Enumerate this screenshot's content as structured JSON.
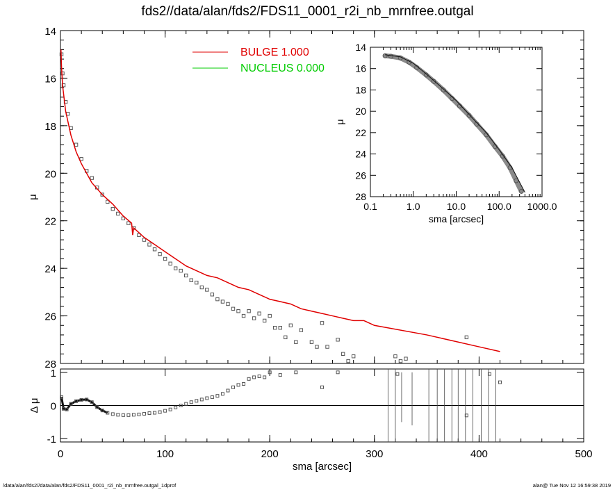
{
  "title": "fds2//data/alan/fds2/FDS11_0001_r2i_nb_mrnfree.outgal",
  "footer": {
    "left": "/data/alan/fds2//data/alan/fds2/FDS11_0001_r2i_nb_mrnfree.outgal_1dprof",
    "right": "alan@  Tue Nov 12 16:59:38 2019"
  },
  "colors": {
    "bulge": "#e00000",
    "nucleus": "#00cc00",
    "data": "#555555",
    "axis": "#000000"
  },
  "legend": [
    {
      "label": "BULGE",
      "value": "1.000",
      "color": "#e00000"
    },
    {
      "label": "NUCLEUS",
      "value": "0.000",
      "color": "#00cc00"
    }
  ],
  "chart_data": [
    {
      "type": "scatter",
      "name": "main-profile",
      "xlabel": "",
      "ylabel": "μ",
      "xlim": [
        0,
        500
      ],
      "ylim": [
        28,
        14
      ],
      "yticks": [
        14,
        16,
        18,
        20,
        22,
        24,
        26,
        28
      ],
      "xticks": [
        0,
        100,
        200,
        300,
        400,
        500
      ],
      "show_x_ticklabels": false,
      "series": [
        {
          "name": "data",
          "points": [
            [
              1,
              15.0
            ],
            [
              2,
              15.8
            ],
            [
              3,
              16.3
            ],
            [
              5,
              17.0
            ],
            [
              7,
              17.5
            ],
            [
              10,
              18.1
            ],
            [
              15,
              18.8
            ],
            [
              20,
              19.4
            ],
            [
              25,
              19.9
            ],
            [
              30,
              20.2
            ],
            [
              35,
              20.6
            ],
            [
              40,
              20.9
            ],
            [
              45,
              21.2
            ],
            [
              50,
              21.5
            ],
            [
              55,
              21.7
            ],
            [
              60,
              21.9
            ],
            [
              65,
              22.1
            ],
            [
              70,
              22.3
            ],
            [
              75,
              22.6
            ],
            [
              80,
              22.8
            ],
            [
              85,
              23.0
            ],
            [
              90,
              23.2
            ],
            [
              95,
              23.4
            ],
            [
              100,
              23.6
            ],
            [
              105,
              23.8
            ],
            [
              110,
              24.0
            ],
            [
              115,
              24.1
            ],
            [
              120,
              24.3
            ],
            [
              125,
              24.5
            ],
            [
              130,
              24.6
            ],
            [
              135,
              24.8
            ],
            [
              140,
              24.9
            ],
            [
              145,
              25.1
            ],
            [
              150,
              25.3
            ],
            [
              155,
              25.4
            ],
            [
              160,
              25.5
            ],
            [
              165,
              25.7
            ],
            [
              170,
              25.8
            ],
            [
              175,
              26.0
            ],
            [
              180,
              25.8
            ],
            [
              185,
              26.1
            ],
            [
              190,
              25.9
            ],
            [
              195,
              26.2
            ],
            [
              200,
              26.0
            ],
            [
              205,
              26.5
            ],
            [
              210,
              26.5
            ],
            [
              215,
              26.9
            ],
            [
              220,
              26.4
            ],
            [
              225,
              27.1
            ],
            [
              230,
              26.6
            ],
            [
              240,
              27.1
            ],
            [
              245,
              27.3
            ],
            [
              250,
              26.3
            ],
            [
              255,
              27.3
            ],
            [
              265,
              27.0
            ],
            [
              270,
              27.6
            ],
            [
              275,
              27.9
            ],
            [
              280,
              27.7
            ],
            [
              320,
              27.7
            ],
            [
              325,
              27.9
            ],
            [
              330,
              27.8
            ],
            [
              388,
              26.9
            ]
          ]
        },
        {
          "name": "BULGE",
          "points": [
            [
              0.5,
              14.8
            ],
            [
              1,
              15.5
            ],
            [
              2,
              16.3
            ],
            [
              5,
              17.4
            ],
            [
              10,
              18.4
            ],
            [
              15,
              19.1
            ],
            [
              20,
              19.6
            ],
            [
              25,
              20.0
            ],
            [
              30,
              20.4
            ],
            [
              40,
              20.9
            ],
            [
              50,
              21.3
            ],
            [
              60,
              21.8
            ],
            [
              68,
              22.1
            ],
            [
              69,
              22.6
            ],
            [
              70,
              22.3
            ],
            [
              80,
              22.7
            ],
            [
              90,
              23.0
            ],
            [
              100,
              23.3
            ],
            [
              110,
              23.6
            ],
            [
              120,
              23.9
            ],
            [
              130,
              24.1
            ],
            [
              140,
              24.3
            ],
            [
              150,
              24.4
            ],
            [
              160,
              24.6
            ],
            [
              170,
              24.8
            ],
            [
              180,
              24.9
            ],
            [
              190,
              25.1
            ],
            [
              200,
              25.3
            ],
            [
              210,
              25.4
            ],
            [
              220,
              25.5
            ],
            [
              230,
              25.7
            ],
            [
              240,
              25.8
            ],
            [
              250,
              25.9
            ],
            [
              260,
              26.0
            ],
            [
              270,
              26.1
            ],
            [
              280,
              26.2
            ],
            [
              290,
              26.2
            ],
            [
              300,
              26.4
            ],
            [
              350,
              26.8
            ],
            [
              400,
              27.3
            ],
            [
              420,
              27.5
            ]
          ]
        }
      ]
    },
    {
      "type": "scatter",
      "name": "inset-log-profile",
      "xlabel": "sma [arcsec]",
      "ylabel": "μ",
      "xscale": "log",
      "xlim": [
        0.1,
        1000
      ],
      "ylim": [
        28,
        14
      ],
      "xticks": [
        "0.1",
        "1.0",
        "10.0",
        "100.0",
        "1000.0"
      ],
      "yticks": [
        14,
        16,
        18,
        20,
        22,
        24,
        26,
        28
      ],
      "series": [
        {
          "name": "data",
          "points": [
            [
              0.22,
              14.8
            ],
            [
              0.3,
              14.85
            ],
            [
              0.5,
              15.0
            ],
            [
              0.8,
              15.4
            ],
            [
              1.2,
              15.9
            ],
            [
              2,
              16.6
            ],
            [
              3,
              17.2
            ],
            [
              5,
              18.0
            ],
            [
              8,
              18.8
            ],
            [
              12,
              19.5
            ],
            [
              20,
              20.4
            ],
            [
              30,
              21.2
            ],
            [
              50,
              22.2
            ],
            [
              80,
              23.3
            ],
            [
              120,
              24.2
            ],
            [
              180,
              25.3
            ],
            [
              250,
              26.5
            ],
            [
              330,
              27.5
            ]
          ]
        },
        {
          "name": "model",
          "points": [
            [
              0.22,
              14.7
            ],
            [
              0.5,
              14.9
            ],
            [
              1,
              15.5
            ],
            [
              2,
              16.5
            ],
            [
              5,
              17.9
            ],
            [
              10,
              19.0
            ],
            [
              20,
              20.3
            ],
            [
              50,
              22.0
            ],
            [
              100,
              23.6
            ],
            [
              200,
              25.3
            ],
            [
              400,
              27.6
            ]
          ]
        }
      ]
    },
    {
      "type": "scatter",
      "name": "residuals",
      "xlabel": "sma [arcsec]",
      "ylabel": "Δ μ",
      "xlim": [
        0,
        500
      ],
      "ylim": [
        -1.1,
        1.1
      ],
      "yticks": [
        -1,
        0,
        1
      ],
      "xticks": [
        0,
        100,
        200,
        300,
        400,
        500
      ],
      "series": [
        {
          "name": "residual",
          "points": [
            [
              1,
              0.25
            ],
            [
              3,
              -0.1
            ],
            [
              6,
              -0.12
            ],
            [
              10,
              0.05
            ],
            [
              15,
              0.13
            ],
            [
              20,
              0.17
            ],
            [
              25,
              0.18
            ],
            [
              30,
              0.1
            ],
            [
              35,
              -0.05
            ],
            [
              40,
              -0.15
            ],
            [
              45,
              -0.22
            ],
            [
              50,
              -0.26
            ],
            [
              55,
              -0.28
            ],
            [
              60,
              -0.29
            ],
            [
              65,
              -0.29
            ],
            [
              70,
              -0.28
            ],
            [
              75,
              -0.27
            ],
            [
              80,
              -0.25
            ],
            [
              85,
              -0.23
            ],
            [
              90,
              -0.22
            ],
            [
              95,
              -0.2
            ],
            [
              100,
              -0.16
            ],
            [
              105,
              -0.12
            ],
            [
              110,
              -0.06
            ],
            [
              115,
              0.0
            ],
            [
              120,
              0.05
            ],
            [
              125,
              0.1
            ],
            [
              130,
              0.14
            ],
            [
              135,
              0.18
            ],
            [
              140,
              0.22
            ],
            [
              145,
              0.25
            ],
            [
              150,
              0.29
            ],
            [
              155,
              0.35
            ],
            [
              160,
              0.45
            ],
            [
              165,
              0.55
            ],
            [
              170,
              0.62
            ],
            [
              175,
              0.65
            ],
            [
              180,
              0.8
            ],
            [
              185,
              0.85
            ],
            [
              190,
              0.88
            ],
            [
              195,
              0.85
            ],
            [
              200,
              1.0
            ],
            [
              210,
              0.92
            ],
            [
              225,
              1.0
            ],
            [
              250,
              0.55
            ],
            [
              265,
              1.0
            ],
            [
              322,
              0.95
            ],
            [
              388,
              -0.3
            ],
            [
              410,
              0.95
            ],
            [
              420,
              0.7
            ]
          ]
        }
      ],
      "error_bars": [
        [
          313,
          -1.1,
          1.1
        ],
        [
          320,
          -1.1,
          1.1
        ],
        [
          326,
          -0.5,
          1.0
        ],
        [
          336,
          -0.6,
          1.0
        ],
        [
          352,
          -1.1,
          1.1
        ],
        [
          360,
          -1.1,
          1.1
        ],
        [
          367,
          -1.1,
          1.1
        ],
        [
          374,
          -1.1,
          1.1
        ],
        [
          380,
          -1.1,
          1.1
        ],
        [
          387,
          -1.1,
          1.1
        ],
        [
          394,
          -1.1,
          1.1
        ],
        [
          402,
          -1.1,
          1.1
        ],
        [
          409,
          -1.1,
          1.1
        ],
        [
          416,
          -1.1,
          1.1
        ]
      ]
    }
  ]
}
